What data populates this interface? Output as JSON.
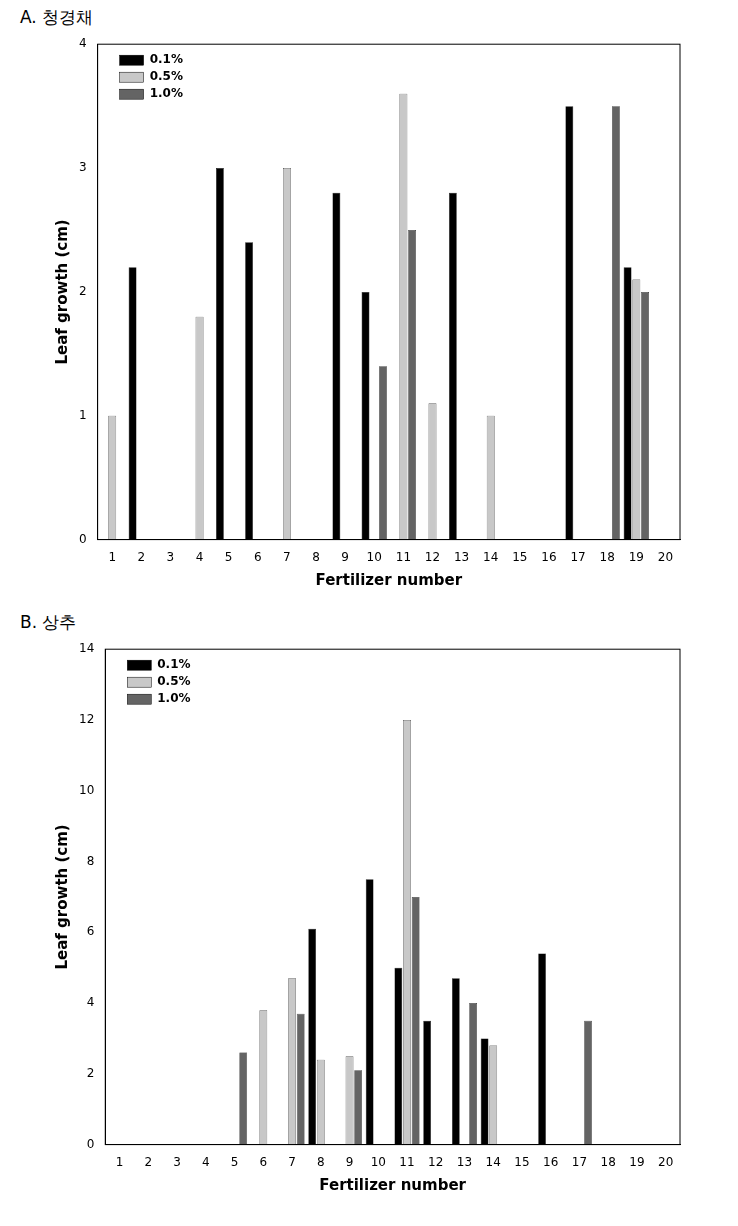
{
  "chart_data": [
    {
      "type": "bar",
      "title": "A. 청경채",
      "x_label": "Fertilizer number",
      "y_label": "Leaf growth (cm)",
      "categories": [
        "1",
        "2",
        "3",
        "4",
        "5",
        "6",
        "7",
        "8",
        "9",
        "10",
        "11",
        "12",
        "13",
        "14",
        "15",
        "16",
        "17",
        "18",
        "19",
        "20"
      ],
      "series": [
        {
          "name": "0.1%",
          "color": "#000000",
          "values": [
            0,
            2.2,
            0,
            0,
            3.0,
            2.4,
            0,
            0,
            2.8,
            2.0,
            0,
            0,
            2.8,
            0,
            0,
            0,
            3.5,
            0,
            2.2,
            0
          ]
        },
        {
          "name": "0.5%",
          "color": "#c8c8c8",
          "values": [
            1.0,
            0,
            0,
            1.8,
            0,
            0,
            3.0,
            0,
            0,
            0,
            3.6,
            1.1,
            0,
            1.0,
            0,
            0,
            0,
            0,
            2.1,
            0
          ]
        },
        {
          "name": "1.0%",
          "color": "#646464",
          "values": [
            0,
            0,
            0,
            0,
            0,
            0,
            0,
            0,
            0,
            1.4,
            2.5,
            0,
            0,
            0,
            0,
            0,
            0,
            3.5,
            2.0,
            0
          ]
        }
      ],
      "ylim": [
        0,
        4
      ],
      "yticks": [
        0,
        1,
        2,
        3,
        4
      ],
      "grid": false,
      "legend": "upper left"
    },
    {
      "type": "bar",
      "title": "B. 상추",
      "x_label": "Fertilizer number",
      "y_label": "Leaf growth (cm)",
      "categories": [
        "1",
        "2",
        "3",
        "4",
        "5",
        "6",
        "7",
        "8",
        "9",
        "10",
        "11",
        "12",
        "13",
        "14",
        "15",
        "16",
        "17",
        "18",
        "19",
        "20"
      ],
      "series": [
        {
          "name": "0.1%",
          "color": "#000000",
          "values": [
            0,
            0,
            0,
            0,
            0,
            0,
            0,
            6.1,
            0,
            7.5,
            5.0,
            3.5,
            4.7,
            3.0,
            0,
            5.4,
            0,
            0,
            0,
            0
          ]
        },
        {
          "name": "0.5%",
          "color": "#c8c8c8",
          "values": [
            0,
            0,
            0,
            0,
            0,
            3.8,
            4.7,
            2.4,
            2.5,
            0,
            12.0,
            0,
            0,
            2.8,
            0,
            0,
            0,
            0,
            0,
            0
          ]
        },
        {
          "name": "1.0%",
          "color": "#646464",
          "values": [
            0,
            0,
            0,
            0,
            2.6,
            0,
            3.7,
            0,
            2.1,
            0,
            7.0,
            0,
            4.0,
            0,
            0,
            0,
            3.5,
            0,
            0,
            0
          ]
        }
      ],
      "ylim": [
        0,
        14
      ],
      "yticks": [
        0,
        2,
        4,
        6,
        8,
        10,
        12,
        14
      ],
      "grid": false,
      "legend": "upper left"
    }
  ]
}
